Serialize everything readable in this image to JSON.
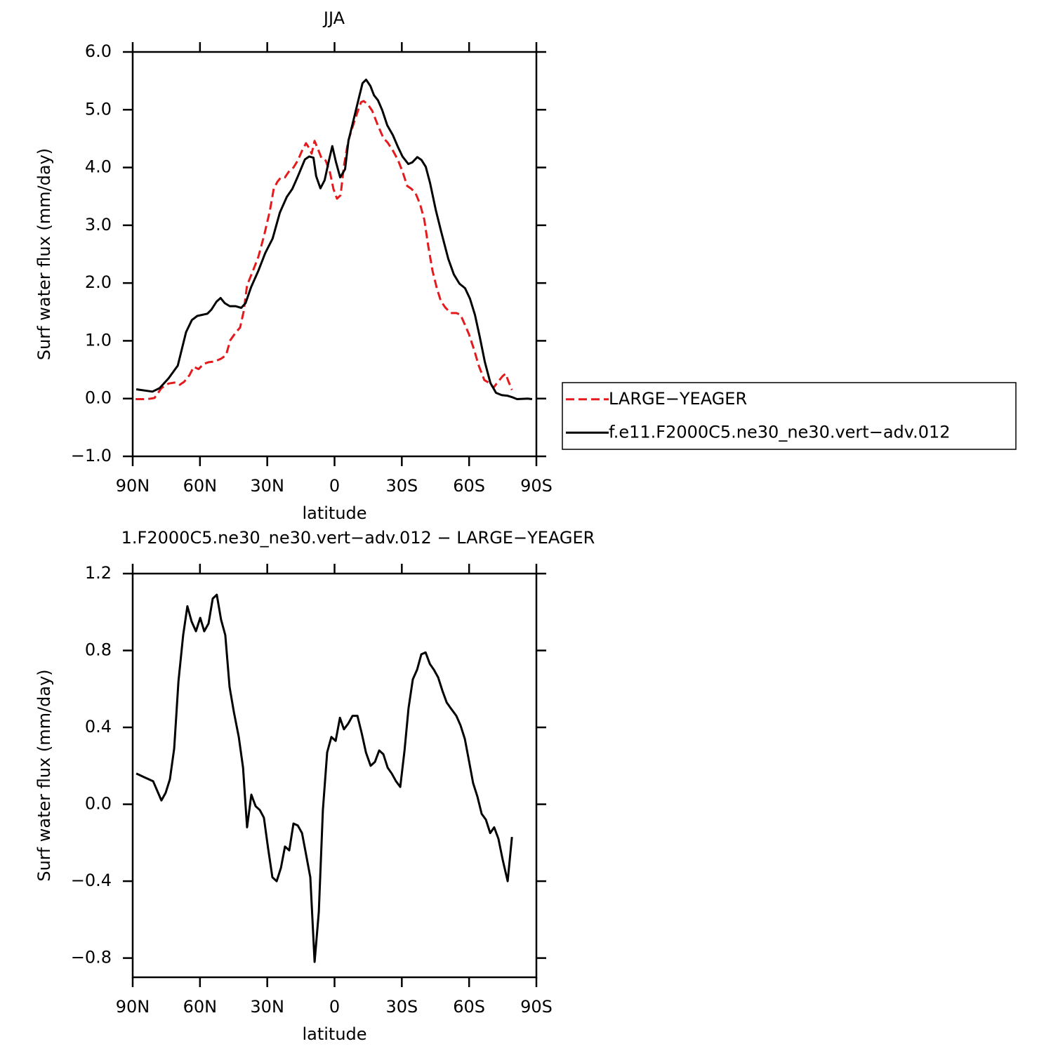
{
  "chart_data": [
    {
      "type": "line",
      "title": "JJA",
      "xlabel": "latitude",
      "ylabel": "Surf water flux (mm/day)",
      "xlim": [
        90,
        -90
      ],
      "xticks": [
        {
          "value": 90,
          "label": "90N"
        },
        {
          "value": 60,
          "label": "60N"
        },
        {
          "value": 30,
          "label": "30N"
        },
        0,
        {
          "value": -30,
          "label": "30S"
        },
        {
          "value": -60,
          "label": "60S"
        },
        {
          "value": -90,
          "label": "90S"
        }
      ],
      "ylim": [
        -1,
        6
      ],
      "yticks": [
        {
          "value": -1,
          "label": "−1.0"
        },
        {
          "value": 0,
          "label": "0.0"
        },
        {
          "value": 1,
          "label": "1.0"
        },
        {
          "value": 2,
          "label": "2.0"
        },
        {
          "value": 3,
          "label": "3.0"
        },
        {
          "value": 4,
          "label": "4.0"
        },
        {
          "value": 5,
          "label": "5.0"
        },
        {
          "value": 6,
          "label": "6.0"
        }
      ],
      "legend": "right",
      "series": [
        {
          "name": "LARGE−YEAGER",
          "color": "#e41a1c",
          "dashed": true,
          "x": [
            88.7,
            83.4,
            80.3,
            77.2,
            74.0,
            70.9,
            69.0,
            67.1,
            64.6,
            62.8,
            60.6,
            58.4,
            56.2,
            53.7,
            50.6,
            48.4,
            46.5,
            44.3,
            42.1,
            40.5,
            39.0,
            36.5,
            34.0,
            31.5,
            28.9,
            27.1,
            25.5,
            23.9,
            22.1,
            20.2,
            18.3,
            16.4,
            14.5,
            12.7,
            11.4,
            10.2,
            8.9,
            7.3,
            5.8,
            3.9,
            2.0,
            0.5,
            -1.1,
            -2.7,
            -4.2,
            -6.1,
            -8.0,
            -9.9,
            -11.8,
            -13.0,
            -14.9,
            -16.8,
            -19.3,
            -21.8,
            -23.7,
            -26.2,
            -28.4,
            -30.5,
            -32.4,
            -34.3,
            -36.2,
            -38.1,
            -40.0,
            -41.8,
            -43.7,
            -45.6,
            -47.4,
            -49.3,
            -51.8,
            -54.3,
            -56.2,
            -58.1,
            -59.9,
            -62.2,
            -64.3,
            -66.8,
            -69.0,
            -70.9,
            -73.1,
            -75.0,
            -76.3,
            -77.5,
            -79.1
          ],
          "values": [
            -0.01,
            -0.01,
            0.01,
            0.18,
            0.26,
            0.28,
            0.24,
            0.29,
            0.41,
            0.55,
            0.51,
            0.6,
            0.63,
            0.64,
            0.69,
            0.75,
            1.01,
            1.13,
            1.23,
            1.51,
            1.96,
            2.2,
            2.45,
            2.81,
            3.24,
            3.63,
            3.75,
            3.83,
            3.83,
            3.94,
            4.0,
            4.12,
            4.29,
            4.42,
            4.34,
            4.24,
            4.46,
            4.31,
            4.16,
            4.12,
            3.91,
            3.63,
            3.46,
            3.52,
            4.03,
            4.46,
            4.7,
            4.92,
            5.13,
            5.15,
            5.09,
            4.98,
            4.73,
            4.51,
            4.43,
            4.28,
            4.12,
            3.91,
            3.68,
            3.63,
            3.55,
            3.37,
            3.1,
            2.64,
            2.21,
            1.91,
            1.69,
            1.58,
            1.48,
            1.48,
            1.45,
            1.28,
            1.12,
            0.85,
            0.57,
            0.32,
            0.27,
            0.19,
            0.3,
            0.39,
            0.43,
            0.3,
            0.15
          ]
        },
        {
          "name": "f.e11.F2000C5.ne30_ne30.vert−adv.012",
          "color": "#000000",
          "dashed": false,
          "x": [
            88.4,
            81.2,
            78.0,
            74.0,
            69.9,
            66.2,
            63.6,
            61.2,
            56.7,
            54.9,
            52.6,
            50.8,
            48.9,
            46.7,
            44.2,
            41.6,
            39.7,
            37.2,
            34.0,
            30.9,
            27.6,
            24.4,
            21.3,
            18.8,
            16.3,
            13.2,
            11.3,
            9.4,
            8.2,
            6.3,
            4.4,
            2.5,
            1.0,
            -0.6,
            -2.5,
            -4.7,
            -6.2,
            -8.7,
            -10.9,
            -12.5,
            -14.1,
            -16.0,
            -17.6,
            -19.4,
            -21.3,
            -23.5,
            -26.0,
            -28.2,
            -30.3,
            -32.9,
            -34.7,
            -36.9,
            -38.8,
            -40.7,
            -42.6,
            -45.1,
            -47.6,
            -50.7,
            -53.2,
            -55.7,
            -58.2,
            -60.4,
            -62.6,
            -64.8,
            -67.0,
            -69.5,
            -72.0,
            -74.5,
            -77.0,
            -79.5,
            -81.4,
            -86.1,
            -88.1
          ],
          "values": [
            0.16,
            0.12,
            0.18,
            0.35,
            0.57,
            1.15,
            1.36,
            1.43,
            1.47,
            1.54,
            1.68,
            1.74,
            1.65,
            1.6,
            1.6,
            1.57,
            1.65,
            1.93,
            2.21,
            2.52,
            2.77,
            3.22,
            3.49,
            3.63,
            3.85,
            4.14,
            4.19,
            4.17,
            3.85,
            3.64,
            3.78,
            4.12,
            4.37,
            4.1,
            3.83,
            3.97,
            4.46,
            4.86,
            5.21,
            5.46,
            5.52,
            5.41,
            5.25,
            5.16,
            4.99,
            4.73,
            4.56,
            4.36,
            4.19,
            4.06,
            4.09,
            4.18,
            4.13,
            4.01,
            3.73,
            3.27,
            2.88,
            2.42,
            2.15,
            1.99,
            1.91,
            1.73,
            1.45,
            1.06,
            0.64,
            0.27,
            0.1,
            0.06,
            0.05,
            0.02,
            -0.01,
            0,
            -0.01
          ]
        }
      ]
    },
    {
      "type": "line",
      "title": "1.F2000C5.ne30_ne30.vert−adv.012 − LARGE−YEAGER",
      "xlabel": "latitude",
      "ylabel": "Surf water flux (mm/day)",
      "xlim": [
        90,
        -90
      ],
      "xticks": [
        {
          "value": 90,
          "label": "90N"
        },
        {
          "value": 60,
          "label": "60N"
        },
        {
          "value": 30,
          "label": "30N"
        },
        0,
        {
          "value": -30,
          "label": "30S"
        },
        {
          "value": -60,
          "label": "60S"
        },
        {
          "value": -90,
          "label": "90S"
        }
      ],
      "ylim": [
        -0.9,
        1.2
      ],
      "yticks": [
        {
          "value": -0.8,
          "label": "−0.8"
        },
        {
          "value": -0.4,
          "label": "−0.4"
        },
        {
          "value": 0,
          "label": "0.0"
        },
        0.4,
        0.8,
        1.2
      ],
      "color": "#000000",
      "x": [
        88.4,
        84.7,
        80.9,
        77.2,
        75.3,
        73.4,
        71.5,
        69.6,
        67.5,
        65.6,
        63.7,
        61.8,
        59.9,
        58.1,
        56.2,
        54.3,
        52.5,
        50.6,
        48.7,
        46.8,
        44.9,
        42.7,
        40.8,
        39.0,
        37.1,
        35.2,
        33.3,
        31.5,
        29.6,
        27.7,
        25.8,
        23.9,
        22.1,
        20.2,
        18.3,
        16.4,
        14.5,
        12.7,
        10.8,
        8.9,
        7.0,
        5.2,
        3.3,
        1.4,
        -0.5,
        -2.4,
        -4.2,
        -6.1,
        -8.0,
        -10.2,
        -12.1,
        -14.0,
        -16.1,
        -18.0,
        -19.9,
        -21.8,
        -23.7,
        -25.5,
        -27.4,
        -29.3,
        -31.2,
        -33.0,
        -34.9,
        -36.8,
        -38.7,
        -40.6,
        -42.5,
        -44.3,
        -46.2,
        -48.1,
        -50.0,
        -51.8,
        -54.3,
        -56.2,
        -58.1,
        -59.9,
        -61.8,
        -63.7,
        -65.6,
        -67.5,
        -69.4,
        -71.2,
        -73.1,
        -75.0,
        -77.2,
        -79.1
      ],
      "values": [
        0.16,
        0.14,
        0.12,
        0.02,
        0.06,
        0.13,
        0.29,
        0.64,
        0.88,
        1.03,
        0.95,
        0.9,
        0.97,
        0.9,
        0.94,
        1.07,
        1.09,
        0.96,
        0.88,
        0.61,
        0.48,
        0.35,
        0.19,
        -0.12,
        0.05,
        -0.01,
        -0.03,
        -0.07,
        -0.23,
        -0.38,
        -0.4,
        -0.33,
        -0.22,
        -0.24,
        -0.1,
        -0.11,
        -0.15,
        -0.26,
        -0.38,
        -0.82,
        -0.56,
        -0.03,
        0.27,
        0.35,
        0.33,
        0.45,
        0.39,
        0.42,
        0.46,
        0.46,
        0.37,
        0.27,
        0.2,
        0.22,
        0.28,
        0.26,
        0.19,
        0.16,
        0.12,
        0.09,
        0.28,
        0.5,
        0.65,
        0.7,
        0.78,
        0.79,
        0.73,
        0.7,
        0.66,
        0.59,
        0.53,
        0.5,
        0.46,
        0.41,
        0.34,
        0.23,
        0.11,
        0.04,
        -0.05,
        -0.08,
        -0.15,
        -0.12,
        -0.18,
        -0.29,
        -0.4,
        -0.17
      ]
    }
  ]
}
